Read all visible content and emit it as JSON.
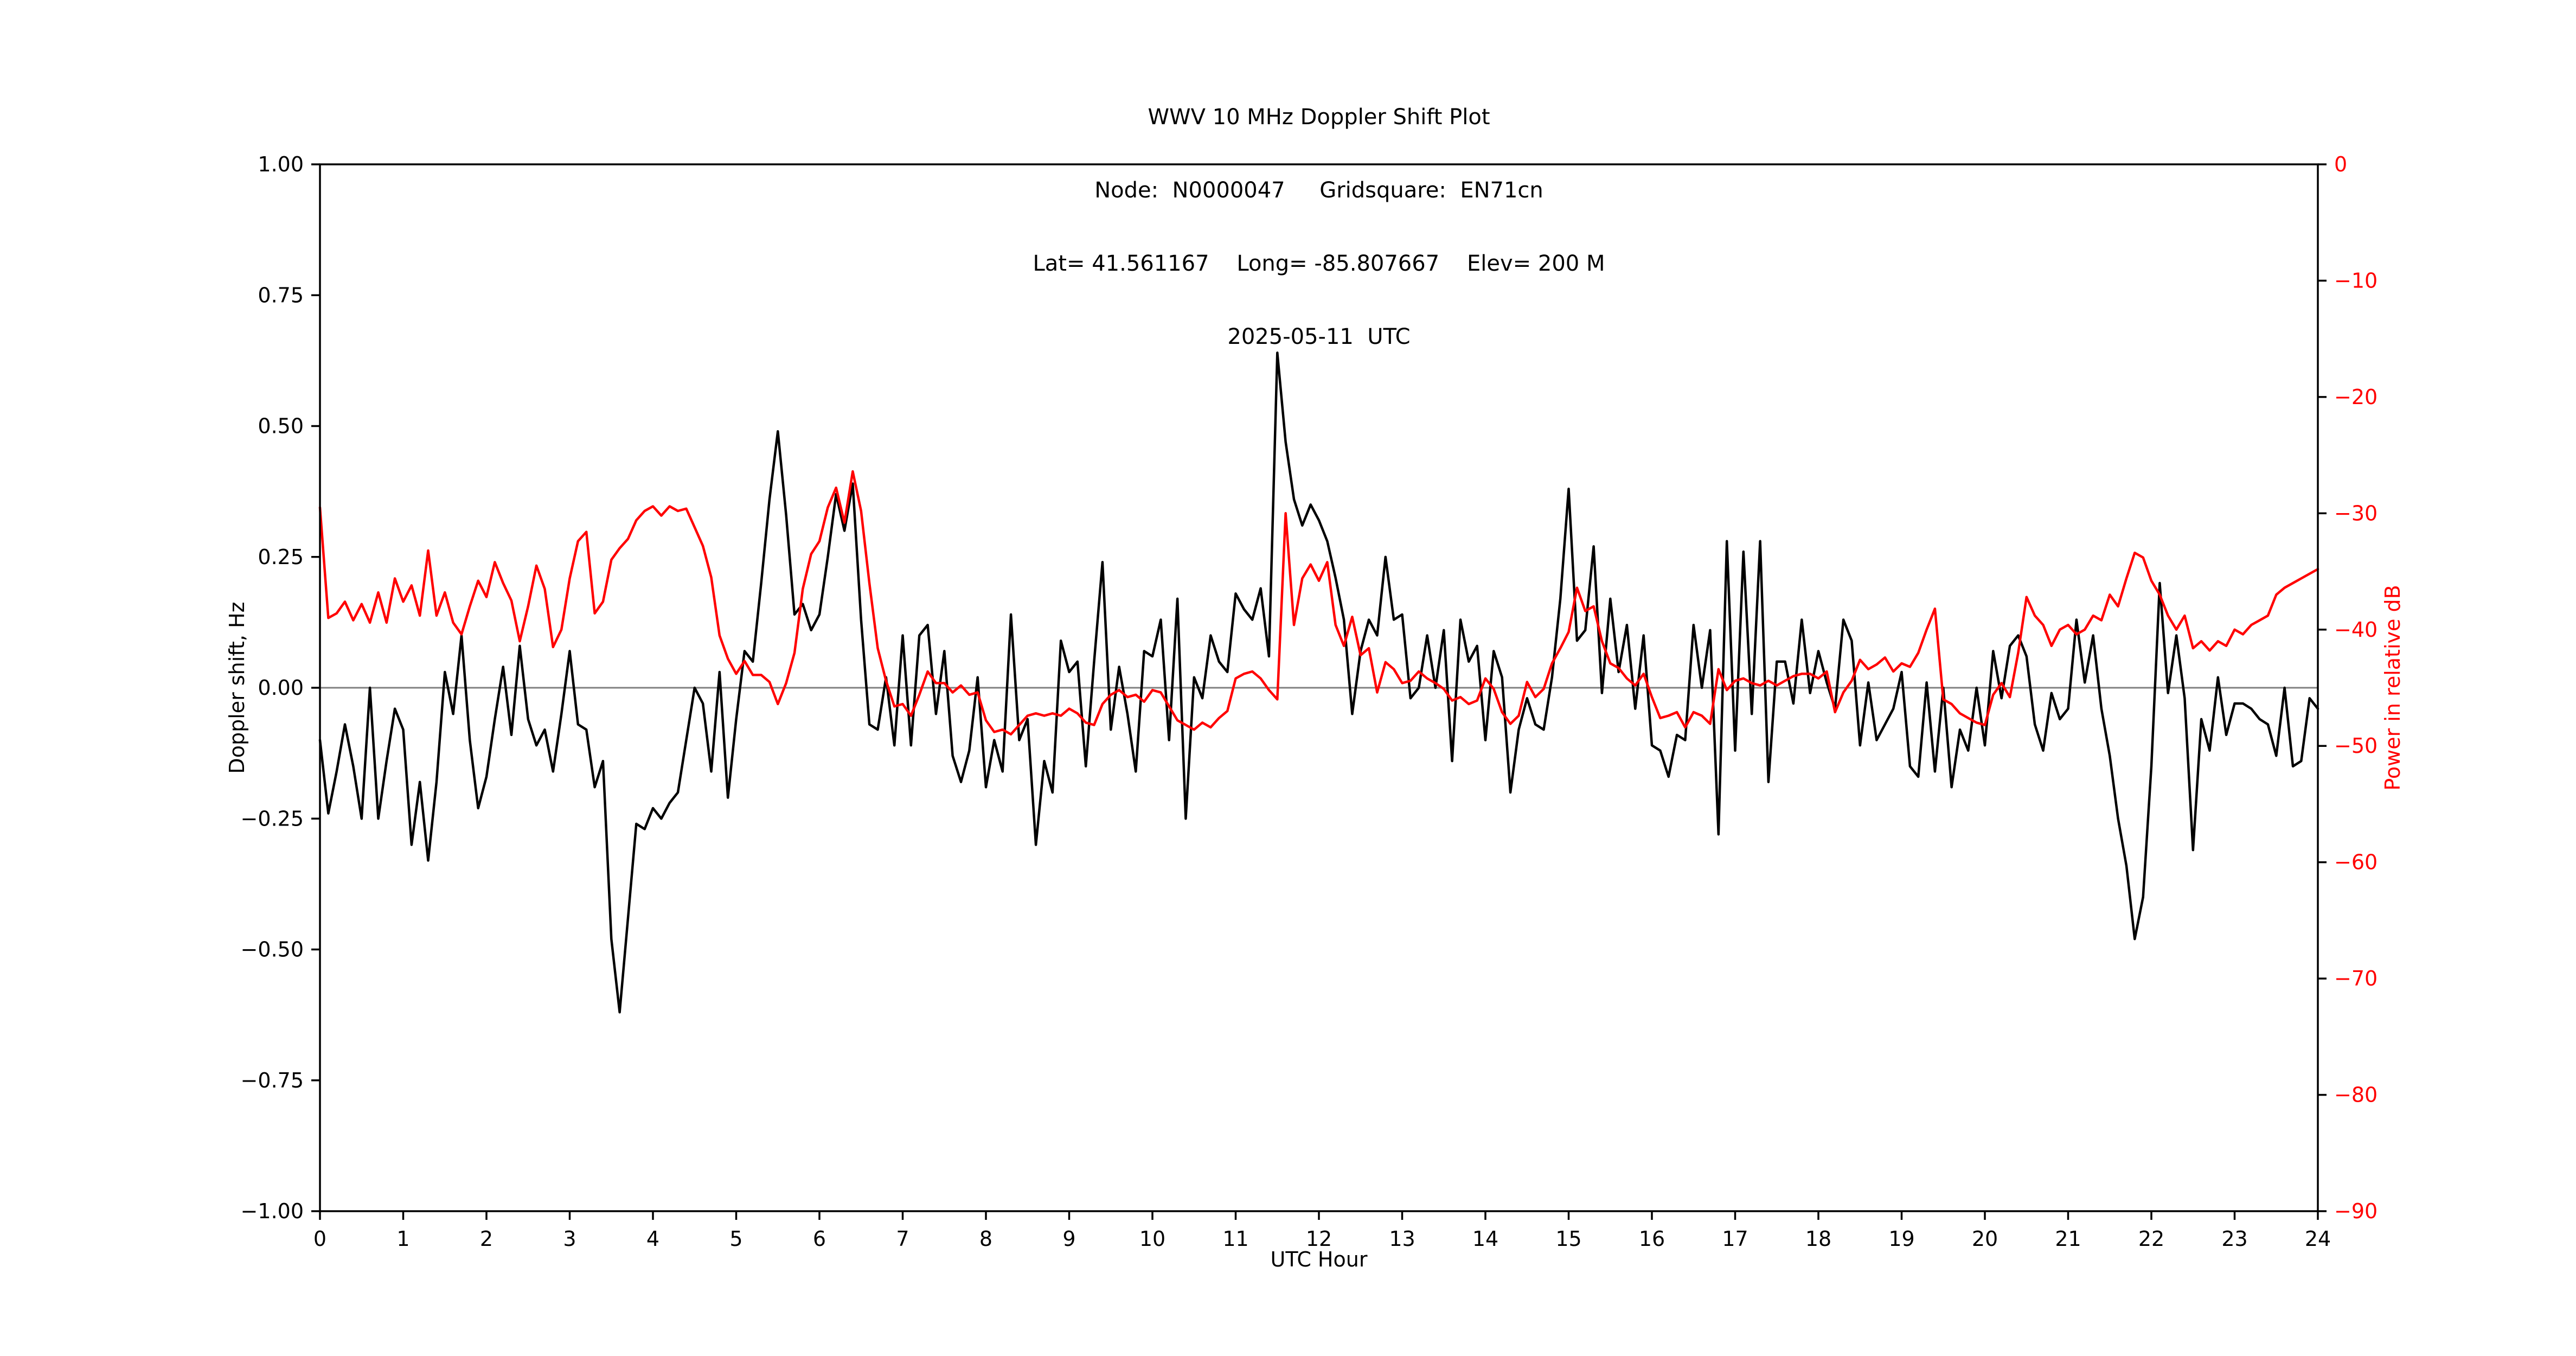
{
  "title": {
    "line1": "WWV 10 MHz Doppler Shift Plot",
    "line2": "Node:  N0000047     Gridsquare:  EN71cn",
    "line3": "Lat= 41.561167    Long= -85.807667    Elev= 200 M",
    "line4": "2025-05-11  UTC"
  },
  "axes": {
    "xlabel": "UTC Hour",
    "left_ylabel": "Doppler shift, Hz",
    "right_ylabel": "Power in relative dB",
    "x_tick_labels": [
      "0",
      "1",
      "2",
      "3",
      "4",
      "5",
      "6",
      "7",
      "8",
      "9",
      "10",
      "11",
      "12",
      "13",
      "14",
      "15",
      "16",
      "17",
      "18",
      "19",
      "20",
      "21",
      "22",
      "23",
      "24"
    ],
    "left_tick_labels": [
      "1.00",
      "0.75",
      "0.50",
      "0.25",
      "0.00",
      "−0.25",
      "−0.50",
      "−0.75",
      "−1.00"
    ],
    "right_tick_labels": [
      "0",
      "−10",
      "−20",
      "−30",
      "−40",
      "−50",
      "−60",
      "−70",
      "−80",
      "−90"
    ]
  },
  "colors": {
    "doppler_line": "#000000",
    "power_line": "#ff0000",
    "zero_line": "#808080",
    "axis": "#000000",
    "right_tick_color": "#ff0000"
  },
  "chart_data": {
    "type": "line",
    "title": "WWV 10 MHz Doppler Shift Plot",
    "subtitle": [
      "Node:  N0000047     Gridsquare:  EN71cn",
      "Lat= 41.561167    Long= -85.807667    Elev= 200 M",
      "2025-05-11  UTC"
    ],
    "xlabel": "UTC Hour",
    "x_range": [
      0,
      24
    ],
    "x_step": 0.1,
    "grid": "horizontal-zero-line-only",
    "legend": "none",
    "left_axis": {
      "label": "Doppler shift, Hz",
      "lim": [
        -1.0,
        1.0
      ],
      "tick_step": 0.25
    },
    "right_axis": {
      "label": "Power in relative dB",
      "lim": [
        -90,
        0
      ],
      "tick_step": 10
    },
    "series": [
      {
        "name": "doppler_shift_hz",
        "axis": "left",
        "color": "#000000",
        "values": [
          -0.1,
          -0.24,
          -0.16,
          -0.07,
          -0.15,
          -0.25,
          0.0,
          -0.25,
          -0.14,
          -0.04,
          -0.08,
          -0.3,
          -0.18,
          -0.33,
          -0.18,
          0.03,
          -0.05,
          0.1,
          -0.1,
          -0.23,
          -0.17,
          -0.06,
          0.04,
          -0.09,
          0.08,
          -0.06,
          -0.11,
          -0.08,
          -0.16,
          -0.05,
          0.07,
          -0.07,
          -0.08,
          -0.19,
          -0.14,
          -0.48,
          -0.62,
          -0.44,
          -0.26,
          -0.27,
          -0.23,
          -0.25,
          -0.22,
          -0.2,
          -0.1,
          0.0,
          -0.03,
          -0.16,
          0.03,
          -0.21,
          -0.06,
          0.07,
          0.05,
          0.2,
          0.36,
          0.49,
          0.33,
          0.14,
          0.16,
          0.11,
          0.14,
          0.25,
          0.37,
          0.3,
          0.39,
          0.13,
          -0.07,
          -0.08,
          0.02,
          -0.11,
          0.1,
          -0.11,
          0.1,
          0.12,
          -0.05,
          0.07,
          -0.13,
          -0.18,
          -0.12,
          0.02,
          -0.19,
          -0.1,
          -0.16,
          0.14,
          -0.1,
          -0.06,
          -0.3,
          -0.14,
          -0.2,
          0.09,
          0.03,
          0.05,
          -0.15,
          0.05,
          0.24,
          -0.08,
          0.04,
          -0.05,
          -0.16,
          0.07,
          0.06,
          0.13,
          -0.1,
          0.17,
          -0.25,
          0.02,
          -0.02,
          0.1,
          0.05,
          0.03,
          0.18,
          0.15,
          0.13,
          0.19,
          0.06,
          0.64,
          0.47,
          0.36,
          0.31,
          0.35,
          0.32,
          0.28,
          0.21,
          0.13,
          -0.05,
          0.07,
          0.13,
          0.1,
          0.25,
          0.13,
          0.14,
          -0.02,
          0.0,
          0.1,
          0.0,
          0.11,
          -0.14,
          0.13,
          0.05,
          0.08,
          -0.1,
          0.07,
          0.02,
          -0.2,
          -0.08,
          -0.02,
          -0.07,
          -0.08,
          0.02,
          0.17,
          0.38,
          0.09,
          0.11,
          0.27,
          -0.01,
          0.17,
          0.03,
          0.12,
          -0.04,
          0.1,
          -0.11,
          -0.12,
          -0.17,
          -0.09,
          -0.1,
          0.12,
          0.0,
          0.11,
          -0.28,
          0.28,
          -0.12,
          0.26,
          -0.05,
          0.28,
          -0.18,
          0.05,
          0.05,
          -0.03,
          0.13,
          -0.01,
          0.07,
          0.01,
          -0.04,
          0.13,
          0.09,
          -0.11,
          0.01,
          -0.1,
          -0.07,
          -0.04,
          0.03,
          -0.15,
          -0.17,
          0.01,
          -0.16,
          0.0,
          -0.19,
          -0.08,
          -0.12,
          0.0,
          -0.11,
          0.07,
          -0.02,
          0.08,
          0.1,
          0.06,
          -0.07,
          -0.12,
          -0.01,
          -0.06,
          -0.04,
          0.13,
          0.01,
          0.1,
          -0.04,
          -0.13,
          -0.25,
          -0.34,
          -0.48,
          -0.4,
          -0.15,
          0.2,
          -0.01,
          0.1,
          -0.02,
          -0.31,
          -0.06,
          -0.12,
          0.02,
          -0.09,
          -0.03,
          -0.03,
          -0.04,
          -0.06,
          -0.07,
          -0.13,
          0.0,
          -0.15,
          -0.14,
          -0.02,
          -0.04
        ]
      },
      {
        "name": "power_relative_db",
        "axis": "right",
        "color": "#ff0000",
        "values": [
          -29.5,
          -39.0,
          -38.6,
          -37.6,
          -39.2,
          -37.8,
          -39.4,
          -36.8,
          -39.4,
          -35.6,
          -37.6,
          -36.2,
          -38.8,
          -33.2,
          -38.8,
          -36.8,
          -39.4,
          -40.4,
          -38.0,
          -35.8,
          -37.2,
          -34.2,
          -36.0,
          -37.5,
          -41.0,
          -38.0,
          -34.5,
          -36.5,
          -41.5,
          -40.0,
          -35.6,
          -32.4,
          -31.6,
          -38.6,
          -37.6,
          -34.0,
          -33.0,
          -32.2,
          -30.6,
          -29.8,
          -29.4,
          -30.2,
          -29.4,
          -29.8,
          -29.6,
          -31.2,
          -32.8,
          -35.5,
          -40.5,
          -42.5,
          -43.8,
          -42.7,
          -43.9,
          -43.9,
          -44.5,
          -46.4,
          -44.6,
          -42.0,
          -36.5,
          -33.5,
          -32.4,
          -29.5,
          -27.8,
          -30.8,
          -26.4,
          -29.8,
          -36.0,
          -41.6,
          -44.4,
          -46.6,
          -46.4,
          -47.4,
          -45.6,
          -43.6,
          -44.6,
          -44.6,
          -45.4,
          -44.8,
          -45.6,
          -45.4,
          -47.8,
          -48.8,
          -48.6,
          -49.0,
          -48.2,
          -47.4,
          -47.2,
          -47.4,
          -47.2,
          -47.4,
          -46.8,
          -47.2,
          -48.0,
          -48.2,
          -46.4,
          -45.6,
          -45.2,
          -45.8,
          -45.6,
          -46.2,
          -45.2,
          -45.4,
          -46.6,
          -47.8,
          -48.2,
          -48.6,
          -48.0,
          -48.4,
          -47.6,
          -47.0,
          -44.2,
          -43.8,
          -43.6,
          -44.2,
          -45.2,
          -46.0,
          -30.0,
          -39.6,
          -35.6,
          -34.4,
          -35.8,
          -34.2,
          -39.6,
          -41.4,
          -38.9,
          -42.2,
          -41.6,
          -45.4,
          -42.8,
          -43.4,
          -44.6,
          -44.4,
          -43.6,
          -44.2,
          -44.6,
          -45.1,
          -46.1,
          -45.8,
          -46.4,
          -46.1,
          -44.2,
          -45.1,
          -47.1,
          -48.1,
          -47.4,
          -44.5,
          -45.8,
          -45.1,
          -42.9,
          -41.6,
          -40.2,
          -36.4,
          -38.4,
          -38.0,
          -41.0,
          -42.9,
          -43.3,
          -44.2,
          -44.8,
          -43.8,
          -45.8,
          -47.6,
          -47.4,
          -47.1,
          -48.4,
          -47.1,
          -47.4,
          -48.1,
          -43.4,
          -45.2,
          -44.4,
          -44.2,
          -44.6,
          -44.8,
          -44.4,
          -44.8,
          -44.4,
          -44.0,
          -43.8,
          -43.8,
          -44.2,
          -43.6,
          -47.1,
          -45.4,
          -44.4,
          -42.6,
          -43.4,
          -43.0,
          -42.4,
          -43.6,
          -42.9,
          -43.2,
          -42.0,
          -40.0,
          -38.2,
          -46.0,
          -46.4,
          -47.2,
          -47.6,
          -48.0,
          -48.2,
          -45.6,
          -44.6,
          -45.8,
          -42.0,
          -37.2,
          -38.8,
          -39.6,
          -41.4,
          -40.0,
          -39.6,
          -40.4,
          -40.0,
          -38.8,
          -39.2,
          -37.0,
          -38.0,
          -35.6,
          -33.4,
          -33.8,
          -35.8,
          -37.0,
          -38.8,
          -40.0,
          -38.8,
          -41.6,
          -41.0,
          -41.8,
          -41.0,
          -41.4,
          -40.0,
          -40.4,
          -39.6,
          -39.2,
          -38.8,
          -37.0,
          -36.4,
          -36.0,
          -35.6,
          -35.2,
          -34.8
        ]
      }
    ]
  }
}
